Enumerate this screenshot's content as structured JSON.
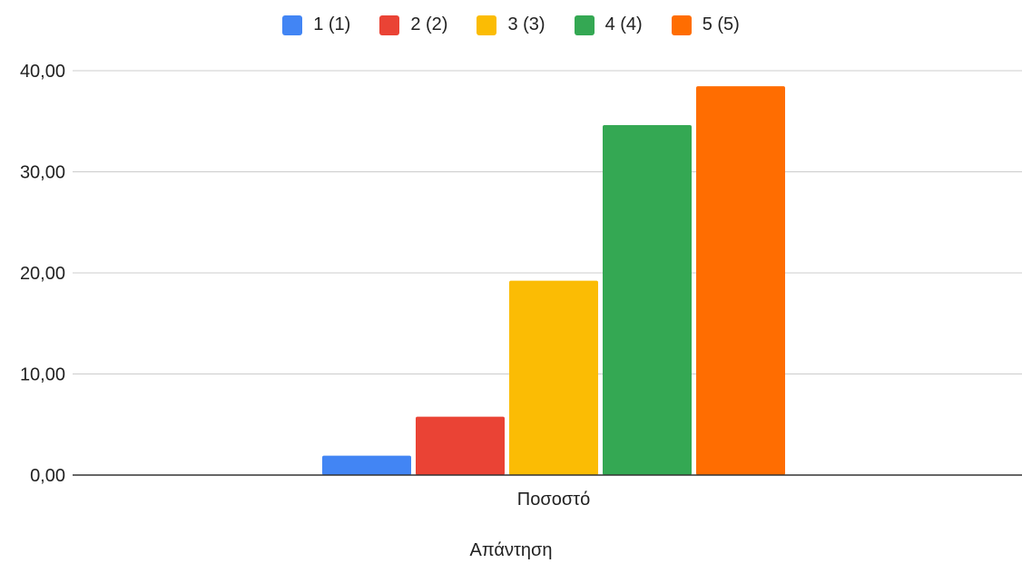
{
  "chart_data": {
    "type": "bar",
    "categories": [
      "Ποσοστό"
    ],
    "series": [
      {
        "name": "1 (1)",
        "values": [
          1.92
        ],
        "color": "#4285F4"
      },
      {
        "name": "2 (2)",
        "values": [
          5.77
        ],
        "color": "#EA4335"
      },
      {
        "name": "3 (3)",
        "values": [
          19.23
        ],
        "color": "#FBBC04"
      },
      {
        "name": "4 (4)",
        "values": [
          34.62
        ],
        "color": "#34A853"
      },
      {
        "name": "5 (5)",
        "values": [
          38.46
        ],
        "color": "#FF6D01"
      }
    ],
    "title": "",
    "xlabel": "Απάντηση",
    "ylabel": "",
    "ylim": [
      0,
      40
    ],
    "yticks": [
      "0,00",
      "10,00",
      "20,00",
      "30,00",
      "40,00"
    ],
    "grid": true,
    "legend_position": "top"
  }
}
